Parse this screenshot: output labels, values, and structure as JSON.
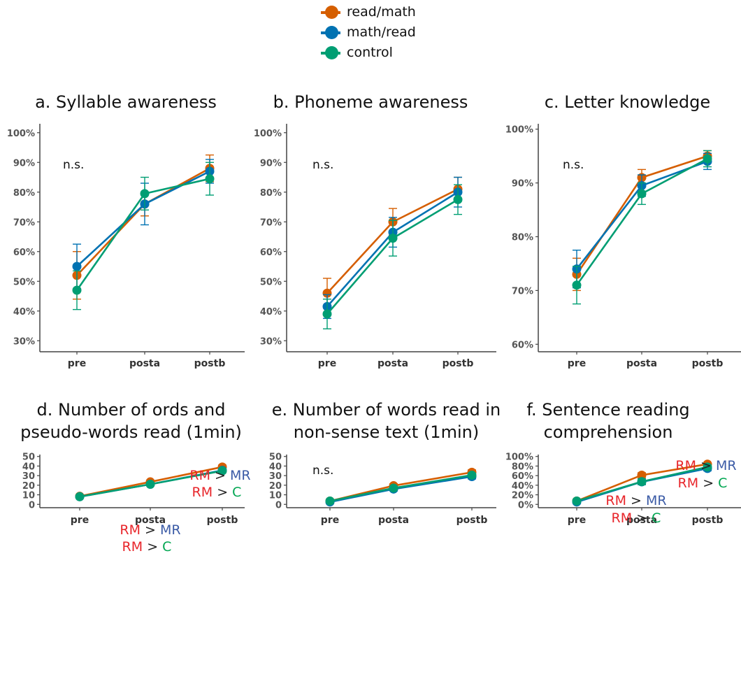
{
  "legend": [
    {
      "label": "read/math",
      "color": "#d55e00"
    },
    {
      "label": "math/read",
      "color": "#0072b2"
    },
    {
      "label": "control",
      "color": "#009e73"
    }
  ],
  "colors": {
    "red": "#e8262b",
    "blue": "#3b5ba6",
    "green": "#00a651",
    "axis": "#444444"
  },
  "chart_data": [
    {
      "type": "line",
      "panel": "a",
      "title": "a. Syllable awareness",
      "categories": [
        "pre",
        "posta",
        "postb"
      ],
      "ylim": [
        27,
        103
      ],
      "yticks": [
        30,
        40,
        50,
        60,
        70,
        80,
        90,
        100
      ],
      "ytick_labels": [
        "30%",
        "40%",
        "50%",
        "60%",
        "70%",
        "80%",
        "90%",
        "100%"
      ],
      "series": [
        {
          "name": "read/math",
          "values": [
            52,
            76,
            88
          ],
          "err": [
            8,
            4,
            4.5
          ]
        },
        {
          "name": "math/read",
          "values": [
            55,
            76,
            87
          ],
          "err": [
            7.5,
            7,
            4
          ]
        },
        {
          "name": "control",
          "values": [
            47,
            79.5,
            84.5
          ],
          "err": [
            6.5,
            5.5,
            5.5
          ]
        }
      ],
      "notes": [
        {
          "text": "n.s."
        }
      ]
    },
    {
      "type": "line",
      "panel": "b",
      "title": "b. Phoneme awareness",
      "categories": [
        "pre",
        "posta",
        "postb"
      ],
      "ylim": [
        27,
        103
      ],
      "yticks": [
        30,
        40,
        50,
        60,
        70,
        80,
        90,
        100
      ],
      "ytick_labels": [
        "30%",
        "40%",
        "50%",
        "60%",
        "70%",
        "80%",
        "90%",
        "100%"
      ],
      "series": [
        {
          "name": "read/math",
          "values": [
            46,
            70,
            81
          ],
          "err": [
            5,
            4.5,
            4
          ]
        },
        {
          "name": "math/read",
          "values": [
            41.5,
            66.5,
            80
          ],
          "err": [
            4,
            5,
            5
          ]
        },
        {
          "name": "control",
          "values": [
            39,
            64.5,
            77.5
          ],
          "err": [
            5,
            6,
            5
          ]
        }
      ],
      "notes": [
        {
          "text": "n.s."
        }
      ]
    },
    {
      "type": "line",
      "panel": "c",
      "title": "c. Letter knowledge",
      "categories": [
        "pre",
        "posta",
        "postb"
      ],
      "ylim": [
        59,
        101
      ],
      "yticks": [
        60,
        70,
        80,
        90,
        100
      ],
      "ytick_labels": [
        "60%",
        "70%",
        "80%",
        "90%",
        "100%"
      ],
      "series": [
        {
          "name": "read/math",
          "values": [
            73,
            91,
            95
          ],
          "err": [
            3,
            1.5,
            1
          ]
        },
        {
          "name": "math/read",
          "values": [
            74,
            89.5,
            94
          ],
          "err": [
            3.5,
            2,
            1.5
          ]
        },
        {
          "name": "control",
          "values": [
            71,
            88,
            94.5
          ],
          "err": [
            3.5,
            2,
            1.5
          ]
        }
      ],
      "notes": [
        {
          "text": "n.s."
        }
      ]
    },
    {
      "type": "line",
      "panel": "d",
      "title": "d. Number of ords and\npseudo-words read (1min)",
      "categories": [
        "pre",
        "posta",
        "postb"
      ],
      "ylim": [
        -2,
        52
      ],
      "yticks": [
        0,
        10,
        20,
        30,
        40,
        50
      ],
      "ytick_labels": [
        "0",
        "10",
        "20",
        "30",
        "40",
        "50"
      ],
      "series": [
        {
          "name": "read/math",
          "values": [
            8.5,
            23.5,
            39
          ],
          "err": [
            1.5,
            1.5,
            2
          ]
        },
        {
          "name": "math/read",
          "values": [
            8,
            21,
            35.5
          ],
          "err": [
            1.5,
            1.5,
            2
          ]
        },
        {
          "name": "control",
          "values": [
            8,
            21,
            35
          ],
          "err": [
            1.5,
            1.5,
            2
          ]
        }
      ],
      "notes": [
        {
          "parts": [
            {
              "t": "RM",
              "c": "red"
            },
            {
              "t": " > ",
              "c": "dark"
            },
            {
              "t": "MR",
              "c": "blue"
            }
          ]
        },
        {
          "parts": [
            {
              "t": "RM",
              "c": "red"
            },
            {
              "t": " > ",
              "c": "dark"
            },
            {
              "t": "C",
              "c": "green"
            }
          ]
        },
        {
          "parts": [
            {
              "t": "RM",
              "c": "red"
            },
            {
              "t": " > ",
              "c": "dark"
            },
            {
              "t": "MR",
              "c": "blue"
            }
          ]
        },
        {
          "parts": [
            {
              "t": "RM",
              "c": "red"
            },
            {
              "t": " > ",
              "c": "dark"
            },
            {
              "t": "C",
              "c": "green"
            }
          ]
        }
      ]
    },
    {
      "type": "line",
      "panel": "e",
      "title": "e. Number of words read in\nnon-sense text (1min)",
      "categories": [
        "pre",
        "posta",
        "postb"
      ],
      "ylim": [
        -2,
        52
      ],
      "yticks": [
        0,
        10,
        20,
        30,
        40,
        50
      ],
      "ytick_labels": [
        "0",
        "10",
        "20",
        "30",
        "40",
        "50"
      ],
      "series": [
        {
          "name": "read/math",
          "values": [
            3.5,
            19.5,
            33.5
          ],
          "err": [
            1.5,
            2,
            2.5
          ]
        },
        {
          "name": "math/read",
          "values": [
            2.5,
            16,
            29
          ],
          "err": [
            1,
            2,
            2.5
          ]
        },
        {
          "name": "control",
          "values": [
            3.5,
            17,
            30.5
          ],
          "err": [
            1.5,
            2,
            2
          ]
        }
      ],
      "notes": [
        {
          "text": "n.s."
        }
      ]
    },
    {
      "type": "line",
      "panel": "f",
      "title": "f. Sentence reading\ncomprehension",
      "categories": [
        "pre",
        "posta",
        "postb"
      ],
      "ylim": [
        -4,
        104
      ],
      "yticks": [
        0,
        20,
        40,
        60,
        80,
        100
      ],
      "ytick_labels": [
        "0%",
        "20%",
        "40%",
        "60%",
        "80%",
        "100%"
      ],
      "series": [
        {
          "name": "read/math",
          "values": [
            7,
            61,
            84
          ],
          "err": [
            3,
            5,
            3
          ]
        },
        {
          "name": "math/read",
          "values": [
            5,
            47,
            75
          ],
          "err": [
            3,
            6,
            5
          ]
        },
        {
          "name": "control",
          "values": [
            7,
            47.5,
            78
          ],
          "err": [
            3,
            6,
            4
          ]
        }
      ],
      "notes": [
        {
          "parts": [
            {
              "t": "RM",
              "c": "red"
            },
            {
              "t": " > ",
              "c": "dark"
            },
            {
              "t": "MR",
              "c": "blue"
            }
          ]
        },
        {
          "parts": [
            {
              "t": "RM",
              "c": "red"
            },
            {
              "t": " > ",
              "c": "dark"
            },
            {
              "t": "C",
              "c": "green"
            }
          ]
        },
        {
          "parts": [
            {
              "t": "RM",
              "c": "red"
            },
            {
              "t": " > ",
              "c": "dark"
            },
            {
              "t": "MR",
              "c": "blue"
            }
          ]
        },
        {
          "parts": [
            {
              "t": "RM",
              "c": "red"
            },
            {
              "t": " > ",
              "c": "dark"
            },
            {
              "t": "C",
              "c": "green"
            }
          ]
        }
      ]
    }
  ]
}
